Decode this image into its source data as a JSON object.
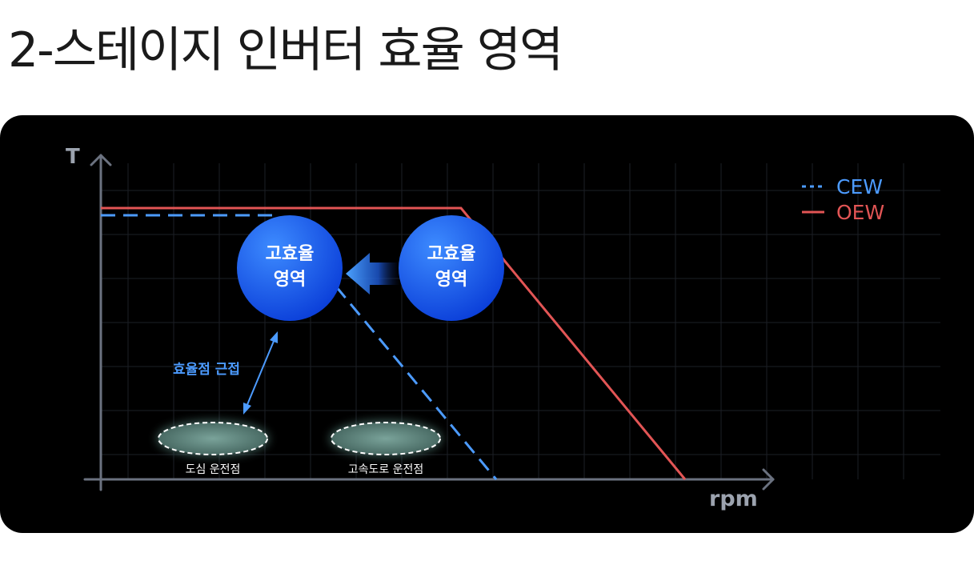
{
  "title": "2-스테이지 인버터 효율 영역",
  "axes": {
    "y_label": "T",
    "x_label": "rpm"
  },
  "legend": [
    {
      "label": "CEW",
      "color": "#3b82f6",
      "style": "dashed"
    },
    {
      "label": "OEW",
      "color": "#e25555",
      "style": "solid"
    }
  ],
  "zones": [
    {
      "line1": "고효율",
      "line2": "영역"
    },
    {
      "line1": "고효율",
      "line2": "영역"
    }
  ],
  "annotation": "효율점 근접",
  "operating_points": [
    "도심 운전점",
    "고속도로 운전점"
  ],
  "colors": {
    "accent_blue": "#4c9bff",
    "red": "#e25555",
    "axis": "#6b7280"
  }
}
